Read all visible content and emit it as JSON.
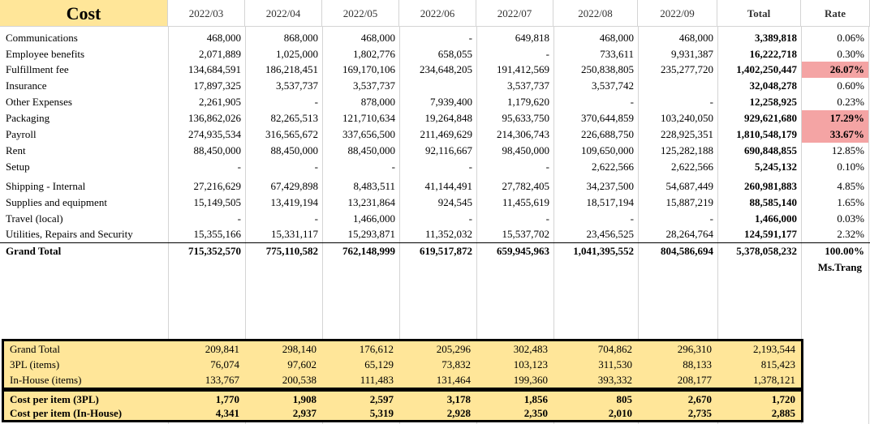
{
  "header": {
    "cost_label": "Cost",
    "months": [
      "2022/03",
      "2022/04",
      "2022/05",
      "2022/06",
      "2022/07",
      "2022/08",
      "2022/09"
    ],
    "total_label": "Total",
    "rate_label": "Rate"
  },
  "rows": [
    {
      "label": "Communications",
      "values": [
        "468,000",
        "868,000",
        "468,000",
        "-",
        "649,818",
        "468,000",
        "468,000"
      ],
      "total": "3,389,818",
      "rate": "0.06%",
      "highlight": false
    },
    {
      "label": "Employee benefits",
      "values": [
        "2,071,889",
        "1,025,000",
        "1,802,776",
        "658,055",
        "-",
        "733,611",
        "9,931,387"
      ],
      "total": "16,222,718",
      "rate": "0.30%",
      "highlight": false
    },
    {
      "label": "Fulfillment fee",
      "values": [
        "134,684,591",
        "186,218,451",
        "169,170,106",
        "234,648,205",
        "191,412,569",
        "250,838,805",
        "235,277,720"
      ],
      "total": "1,402,250,447",
      "rate": "26.07%",
      "highlight": true
    },
    {
      "label": "Insurance",
      "values": [
        "17,897,325",
        "3,537,737",
        "3,537,737",
        "",
        "3,537,737",
        "3,537,742",
        ""
      ],
      "total": "32,048,278",
      "rate": "0.60%",
      "highlight": false
    },
    {
      "label": "Other Expenses",
      "values": [
        "2,261,905",
        "-",
        "878,000",
        "7,939,400",
        "1,179,620",
        "-",
        "-"
      ],
      "total": "12,258,925",
      "rate": "0.23%",
      "highlight": false
    },
    {
      "label": "Packaging",
      "values": [
        "136,862,026",
        "82,265,513",
        "121,710,634",
        "19,264,848",
        "95,633,750",
        "370,644,859",
        "103,240,050"
      ],
      "total": "929,621,680",
      "rate": "17.29%",
      "highlight": true
    },
    {
      "label": "Payroll",
      "values": [
        "274,935,534",
        "316,565,672",
        "337,656,500",
        "211,469,629",
        "214,306,743",
        "226,688,750",
        "228,925,351"
      ],
      "total": "1,810,548,179",
      "rate": "33.67%",
      "highlight": true
    },
    {
      "label": "Rent",
      "values": [
        "88,450,000",
        "88,450,000",
        "88,450,000",
        "92,116,667",
        "98,450,000",
        "109,650,000",
        "125,282,188"
      ],
      "total": "690,848,855",
      "rate": "12.85%",
      "highlight": false
    },
    {
      "label": "Setup",
      "values": [
        "-",
        "-",
        "-",
        "-",
        "-",
        "2,622,566",
        "2,622,566"
      ],
      "total": "5,245,132",
      "rate": "0.10%",
      "highlight": false
    },
    {
      "label": "Shipping - Internal",
      "values": [
        "27,216,629",
        "67,429,898",
        "8,483,511",
        "41,144,491",
        "27,782,405",
        "34,237,500",
        "54,687,449"
      ],
      "total": "260,981,883",
      "rate": "4.85%",
      "highlight": false
    },
    {
      "label": "Supplies and equipment",
      "values": [
        "15,149,505",
        "13,419,194",
        "13,231,864",
        "924,545",
        "11,455,619",
        "18,517,194",
        "15,887,219"
      ],
      "total": "88,585,140",
      "rate": "1.65%",
      "highlight": false
    },
    {
      "label": "Travel (local)",
      "values": [
        "-",
        "-",
        "1,466,000",
        "-",
        "-",
        "-",
        "-"
      ],
      "total": "1,466,000",
      "rate": "0.03%",
      "highlight": false
    },
    {
      "label": "Utilities, Repairs and Security",
      "values": [
        "15,355,166",
        "15,331,117",
        "15,293,871",
        "11,352,032",
        "15,537,702",
        "23,456,525",
        "28,264,764"
      ],
      "total": "124,591,177",
      "rate": "2.32%",
      "highlight": false
    }
  ],
  "grand_total": {
    "label": "Grand Total",
    "values": [
      "715,352,570",
      "775,110,582",
      "762,148,999",
      "619,517,872",
      "659,945,963",
      "1,041,395,552",
      "804,586,694"
    ],
    "total": "5,378,058,232",
    "rate": "100.00%"
  },
  "signature": "Ms.Trang",
  "items_box": [
    {
      "label": "Grand Total",
      "values": [
        "209,841",
        "298,140",
        "176,612",
        "205,296",
        "302,483",
        "704,862",
        "296,310"
      ],
      "total": "2,193,544"
    },
    {
      "label": "3PL (items)",
      "values": [
        "76,074",
        "97,602",
        "65,129",
        "73,832",
        "103,123",
        "311,530",
        "88,133"
      ],
      "total": "815,423"
    },
    {
      "label": "In-House (items)",
      "values": [
        "133,767",
        "200,538",
        "111,483",
        "131,464",
        "199,360",
        "393,332",
        "208,177"
      ],
      "total": "1,378,121"
    }
  ],
  "cost_box": [
    {
      "label": "Cost per item (3PL)",
      "values": [
        "1,770",
        "1,908",
        "2,597",
        "3,178",
        "1,856",
        "805",
        "2,670"
      ],
      "total": "1,720"
    },
    {
      "label": "Cost per item (In-House)",
      "values": [
        "4,341",
        "2,937",
        "5,319",
        "2,928",
        "2,350",
        "2,010",
        "2,735"
      ],
      "total": "2,885"
    }
  ]
}
